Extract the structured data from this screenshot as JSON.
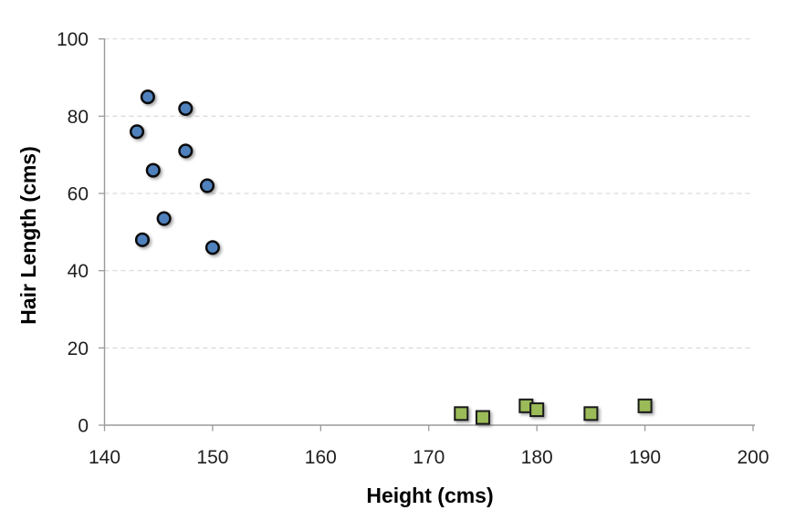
{
  "figure": {
    "title": "",
    "background": "#FFFFFF",
    "legend_visible": false
  },
  "style": {
    "gridline_color": "#D9D9D9",
    "axis_color": "#9A9A9A",
    "tick_label_color": "#1F1F1F",
    "axis_title_color": "#000000"
  },
  "chart_data": {
    "type": "scatter",
    "title": "",
    "xlabel": "Height (cms)",
    "ylabel": "Hair Length (cms)",
    "xlim": [
      140,
      200
    ],
    "ylim": [
      0,
      100
    ],
    "x_ticks": [
      140,
      150,
      160,
      170,
      180,
      190,
      200
    ],
    "y_ticks": [
      0,
      20,
      40,
      60,
      80,
      100
    ],
    "grid": {
      "horizontal": "dashed",
      "vertical": "none"
    },
    "legend_position": "none",
    "series": [
      {
        "name": "blue-circles",
        "marker": "circle",
        "fill": "#4F81BD",
        "stroke": "#0A0A0A",
        "points": [
          [
            143,
            76
          ],
          [
            143.5,
            48
          ],
          [
            144,
            85
          ],
          [
            144.5,
            66
          ],
          [
            145.5,
            53.5
          ],
          [
            147.5,
            82
          ],
          [
            147.5,
            71
          ],
          [
            149.5,
            62
          ],
          [
            150,
            46
          ]
        ]
      },
      {
        "name": "green-squares",
        "marker": "square",
        "fill": "#9BBB59",
        "stroke": "#1A1A1A",
        "points": [
          [
            173,
            3
          ],
          [
            175,
            2
          ],
          [
            179,
            5
          ],
          [
            180,
            4
          ],
          [
            185,
            3
          ],
          [
            190,
            5
          ]
        ]
      }
    ]
  }
}
